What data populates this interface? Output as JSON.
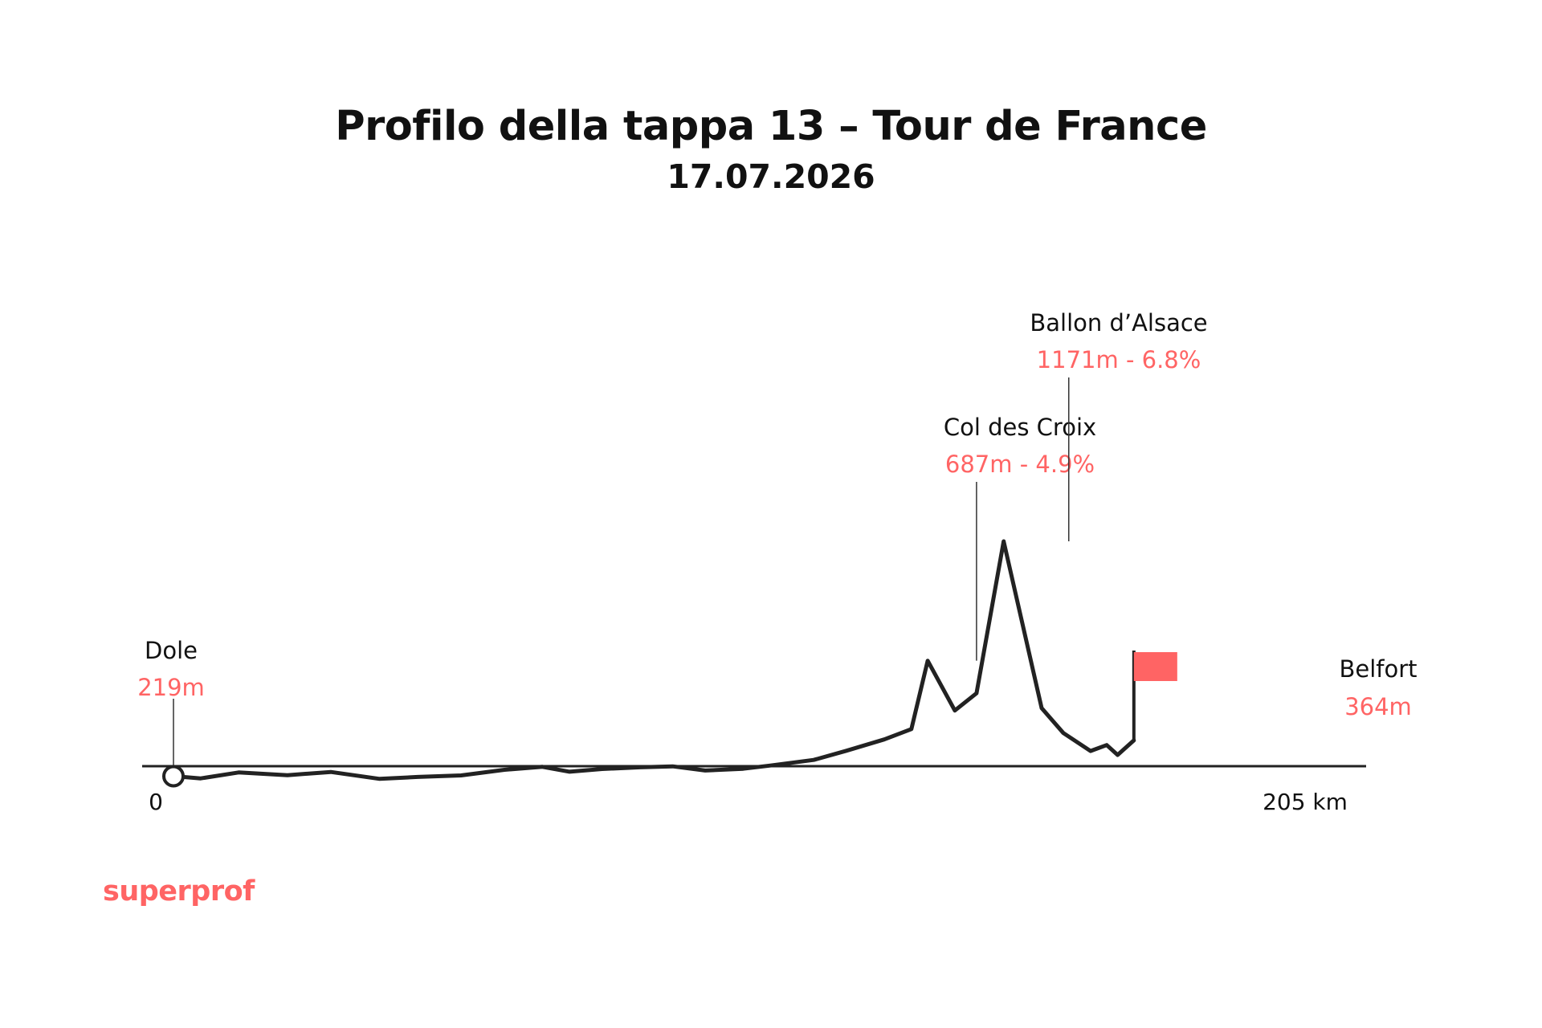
{
  "header": {
    "title": "Profilo della tappa 13 – Tour de France",
    "date": "17.07.2026"
  },
  "brand": {
    "logo_text": "superprof"
  },
  "colors": {
    "accent": "#ff6464",
    "line": "#222222",
    "text": "#111111"
  },
  "chart_data": {
    "type": "area",
    "title": "Profilo della tappa 13 – Tour de France",
    "subtitle": "17.07.2026",
    "xlabel": "",
    "ylabel": "",
    "x_unit": "km",
    "y_unit": "m",
    "xlim": [
      0,
      205
    ],
    "ylim": [
      100,
      1171
    ],
    "x_tick_labels": {
      "start": "0",
      "end": "205 km"
    },
    "grid": false,
    "x": [
      0,
      5,
      12,
      21,
      29,
      38,
      45,
      53,
      61,
      68,
      73,
      79,
      86,
      92,
      98,
      105,
      110,
      118,
      124,
      131,
      136,
      139,
      144,
      148,
      153,
      160,
      164,
      169,
      172,
      174,
      177
    ],
    "y": [
      219,
      210,
      234,
      223,
      236,
      208,
      216,
      222,
      245,
      257,
      237,
      248,
      255,
      259,
      242,
      249,
      262,
      285,
      322,
      368,
      410,
      687,
      485,
      555,
      1171,
      495,
      394,
      321,
      345,
      305,
      364
    ],
    "annotations": [
      {
        "id": "start",
        "name": "Dole",
        "detail": "219m",
        "x": 0,
        "y": 219,
        "marker": "circle"
      },
      {
        "id": "col-des-croix",
        "name": "Col des Croix",
        "detail": "687m - 4.9%",
        "x": 148,
        "y": 687,
        "marker": "leader"
      },
      {
        "id": "ballon-dalsace",
        "name": "Ballon d’Alsace",
        "detail": "1171m - 6.8%",
        "x": 165,
        "y": 1171,
        "marker": "leader"
      },
      {
        "id": "finish",
        "name": "Belfort",
        "detail": "364m",
        "x": 177,
        "y": 364,
        "marker": "flag"
      }
    ]
  }
}
